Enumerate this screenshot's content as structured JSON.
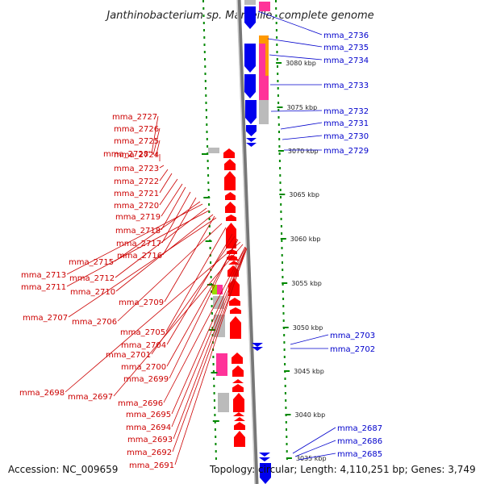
{
  "title": "Janthinobacterium sp. Marseille, complete genome",
  "footer": {
    "accession": "Accession: NC_009659",
    "topology": "Topology: circular; Length: 4,110,251 bp; Genes: 3,749"
  },
  "colors": {
    "forward": "#0000ee",
    "reverse": "#ff0000",
    "pink": "#ff3399",
    "gray": "#bbbbbb",
    "orange": "#ff9900",
    "green": "#99dd00",
    "scale_tick": "#008800",
    "blue_label": "#0000cc",
    "red_label": "#cc0000"
  },
  "kbp_ticks": [
    "3080 kbp",
    "3075 kbp",
    "3070 kbp",
    "3065 kbp",
    "3060 kbp",
    "3055 kbp",
    "3050 kbp",
    "3045 kbp",
    "3040 kbp",
    "3035 kbp"
  ],
  "right_genes": [
    "mma_2736",
    "mma_2735",
    "mma_2734",
    "mma_2733",
    "mma_2732",
    "mma_2731",
    "mma_2730",
    "mma_2729",
    "mma_2703",
    "mma_2702",
    "mma_2687",
    "mma_2686",
    "mma_2685"
  ],
  "left_genes": [
    "mma_2728",
    "mma_2727",
    "mma_2726",
    "mma_2725",
    "mma_2724",
    "mma_2723",
    "mma_2722",
    "mma_2721",
    "mma_2720",
    "mma_2719",
    "mma_2718",
    "mma_2717",
    "mma_2716",
    "mma_2715",
    "mma_2713",
    "mma_2712",
    "mma_2711",
    "mma_2710",
    "mma_2709",
    "mma_2707",
    "mma_2706",
    "mma_2705",
    "mma_2704",
    "mma_2701",
    "mma_2700",
    "mma_2699",
    "mma_2698",
    "mma_2697",
    "mma_2696",
    "mma_2695",
    "mma_2694",
    "mma_2693",
    "mma_2692",
    "mma_2691"
  ]
}
